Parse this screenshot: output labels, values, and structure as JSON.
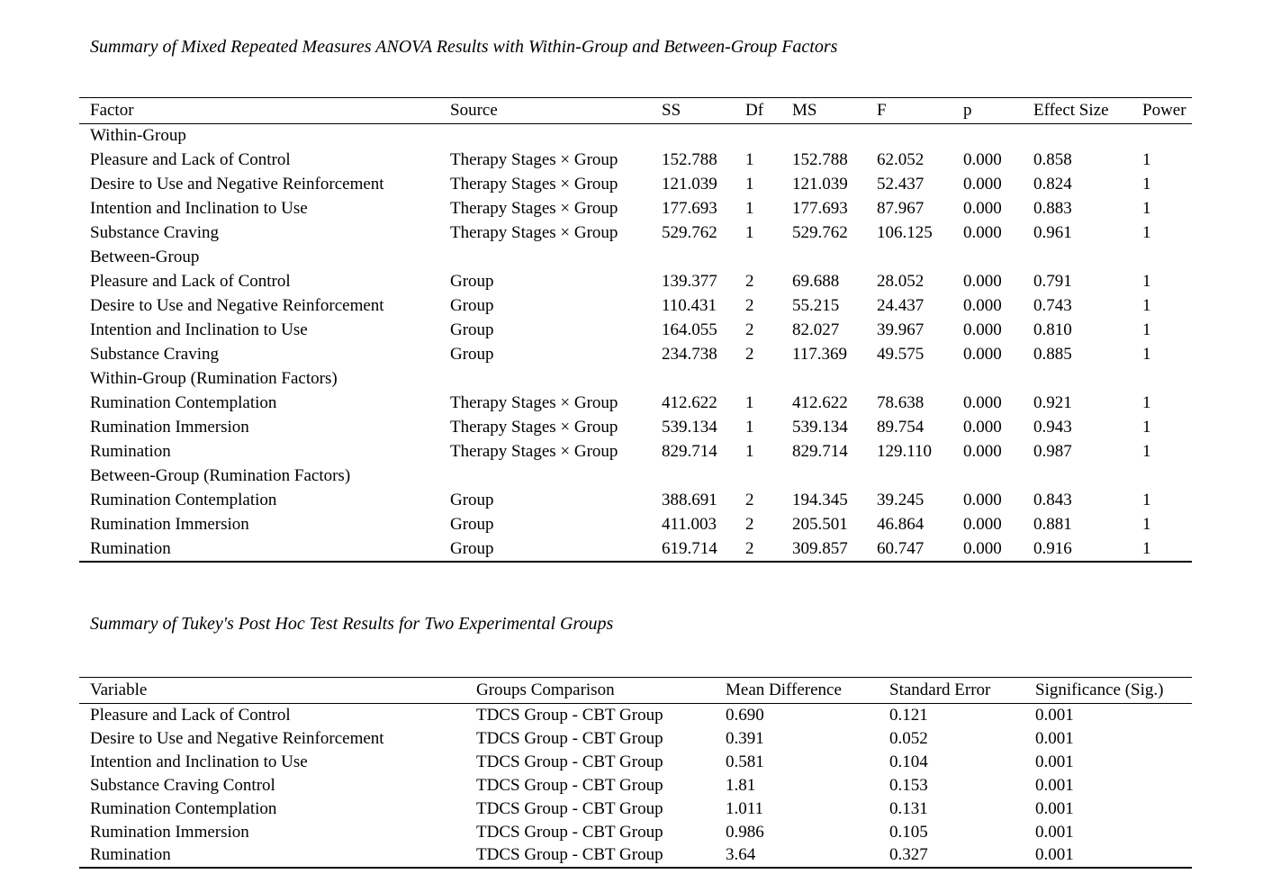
{
  "page": {
    "background_color": "#ffffff",
    "text_color": "#000000"
  },
  "anova_table": {
    "title": "Summary of Mixed Repeated Measures ANOVA Results with Within-Group and Between-Group Factors",
    "columns": [
      "Factor",
      "Source",
      "SS",
      "Df",
      "MS",
      "F",
      "p",
      "Effect Size",
      "Power"
    ],
    "rows": [
      {
        "type": "section",
        "label": "Within-Group"
      },
      {
        "type": "data",
        "factor": "Pleasure and Lack of Control",
        "source": "Therapy Stages × Group",
        "ss": "152.788",
        "df": "1",
        "ms": "152.788",
        "f": "62.052",
        "p": "0.000",
        "effect_size": "0.858",
        "power": "1"
      },
      {
        "type": "data",
        "factor": "Desire to Use and Negative Reinforcement",
        "source": "Therapy Stages × Group",
        "ss": "121.039",
        "df": "1",
        "ms": "121.039",
        "f": "52.437",
        "p": "0.000",
        "effect_size": "0.824",
        "power": "1"
      },
      {
        "type": "data",
        "factor": "Intention and Inclination to Use",
        "source": "Therapy Stages × Group",
        "ss": "177.693",
        "df": "1",
        "ms": "177.693",
        "f": "87.967",
        "p": "0.000",
        "effect_size": "0.883",
        "power": "1"
      },
      {
        "type": "data",
        "factor": "Substance Craving",
        "source": "Therapy Stages × Group",
        "ss": "529.762",
        "df": "1",
        "ms": "529.762",
        "f": "106.125",
        "p": "0.000",
        "effect_size": "0.961",
        "power": "1"
      },
      {
        "type": "section",
        "label": "Between-Group"
      },
      {
        "type": "data",
        "factor": "Pleasure and Lack of Control",
        "source": "Group",
        "ss": "139.377",
        "df": "2",
        "ms": "69.688",
        "f": "28.052",
        "p": "0.000",
        "effect_size": "0.791",
        "power": "1"
      },
      {
        "type": "data",
        "factor": "Desire to Use and Negative Reinforcement",
        "source": "Group",
        "ss": "110.431",
        "df": "2",
        "ms": "55.215",
        "f": "24.437",
        "p": "0.000",
        "effect_size": "0.743",
        "power": "1"
      },
      {
        "type": "data",
        "factor": "Intention and Inclination to Use",
        "source": "Group",
        "ss": "164.055",
        "df": "2",
        "ms": "82.027",
        "f": "39.967",
        "p": "0.000",
        "effect_size": "0.810",
        "power": "1"
      },
      {
        "type": "data",
        "factor": "Substance Craving",
        "source": "Group",
        "ss": "234.738",
        "df": "2",
        "ms": "117.369",
        "f": "49.575",
        "p": "0.000",
        "effect_size": "0.885",
        "power": "1"
      },
      {
        "type": "section",
        "label": "Within-Group (Rumination Factors)"
      },
      {
        "type": "data",
        "factor": "Rumination Contemplation",
        "source": "Therapy Stages × Group",
        "ss": "412.622",
        "df": "1",
        "ms": "412.622",
        "f": "78.638",
        "p": "0.000",
        "effect_size": "0.921",
        "power": "1"
      },
      {
        "type": "data",
        "factor": "Rumination Immersion",
        "source": "Therapy Stages × Group",
        "ss": "539.134",
        "df": "1",
        "ms": "539.134",
        "f": "89.754",
        "p": "0.000",
        "effect_size": "0.943",
        "power": "1"
      },
      {
        "type": "data",
        "factor": "Rumination",
        "source": "Therapy Stages × Group",
        "ss": "829.714",
        "df": "1",
        "ms": "829.714",
        "f": "129.110",
        "p": "0.000",
        "effect_size": "0.987",
        "power": "1"
      },
      {
        "type": "section",
        "label": "Between-Group (Rumination Factors)"
      },
      {
        "type": "data",
        "factor": "Rumination Contemplation",
        "source": "Group",
        "ss": "388.691",
        "df": "2",
        "ms": "194.345",
        "f": "39.245",
        "p": "0.000",
        "effect_size": "0.843",
        "power": "1"
      },
      {
        "type": "data",
        "factor": "Rumination Immersion",
        "source": "Group",
        "ss": "411.003",
        "df": "2",
        "ms": "205.501",
        "f": "46.864",
        "p": "0.000",
        "effect_size": "0.881",
        "power": "1"
      },
      {
        "type": "data",
        "factor": "Rumination",
        "source": "Group",
        "ss": "619.714",
        "df": "2",
        "ms": "309.857",
        "f": "60.747",
        "p": "0.000",
        "effect_size": "0.916",
        "power": "1"
      }
    ]
  },
  "posthoc_table": {
    "title": "Summary of Tukey's Post Hoc Test Results for Two Experimental Groups",
    "columns": [
      "Variable",
      "Groups Comparison",
      "Mean Difference",
      "Standard Error",
      "Significance (Sig.)"
    ],
    "rows": [
      {
        "type": "data",
        "variable": "Pleasure and Lack of Control",
        "comparison": "TDCS Group - CBT Group",
        "mean_difference": "0.690",
        "standard_error": "0.121",
        "significance": "0.001"
      },
      {
        "type": "data",
        "variable": "Desire to Use and Negative Reinforcement",
        "comparison": "TDCS Group - CBT Group",
        "mean_difference": "0.391",
        "standard_error": "0.052",
        "significance": "0.001"
      },
      {
        "type": "data",
        "variable": "Intention and Inclination to Use",
        "comparison": "TDCS Group - CBT Group",
        "mean_difference": "0.581",
        "standard_error": "0.104",
        "significance": "0.001"
      },
      {
        "type": "data",
        "variable": "Substance Craving Control",
        "comparison": "TDCS Group - CBT Group",
        "mean_difference": "1.81",
        "standard_error": "0.153",
        "significance": "0.001"
      },
      {
        "type": "data",
        "variable": "Rumination Contemplation",
        "comparison": "TDCS Group - CBT Group",
        "mean_difference": "1.011",
        "standard_error": "0.131",
        "significance": "0.001"
      },
      {
        "type": "data",
        "variable": "Rumination Immersion",
        "comparison": "TDCS Group - CBT Group",
        "mean_difference": "0.986",
        "standard_error": "0.105",
        "significance": "0.001"
      },
      {
        "type": "data",
        "variable": "Rumination",
        "comparison": "TDCS Group - CBT Group",
        "mean_difference": "3.64",
        "standard_error": "0.327",
        "significance": "0.001"
      }
    ]
  }
}
